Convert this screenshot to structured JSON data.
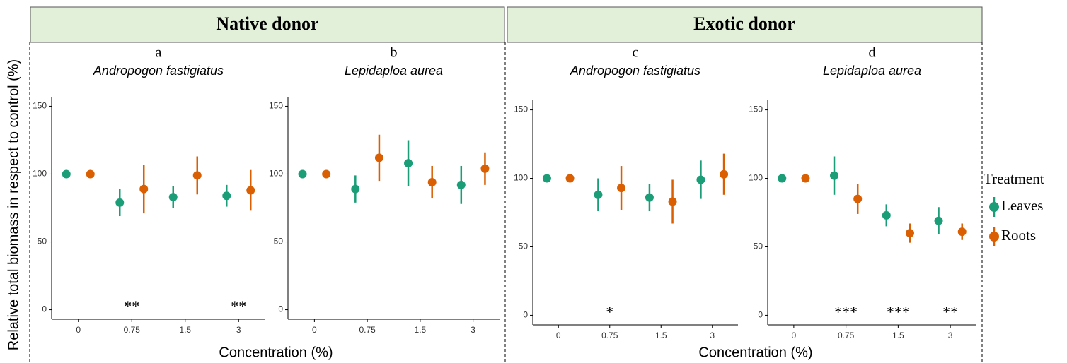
{
  "groups": [
    {
      "title": "Native donor",
      "x_label": "Concentration (%)"
    },
    {
      "title": "Exotic donor",
      "x_label": "Concentration (%)"
    }
  ],
  "y_label": "Relative total biomass in respect to control (%)",
  "legend_title": "Treatment",
  "chart_data": [
    {
      "type": "pointrange",
      "label": "a",
      "title": "Andropogon fastigiatus",
      "categories": [
        "0",
        "0.75",
        "1.5",
        "3"
      ],
      "series": [
        {
          "name": "Leaves",
          "color": "#1b9e77",
          "values": [
            100,
            79,
            83,
            84
          ],
          "errors": [
            0,
            10,
            8,
            8
          ]
        },
        {
          "name": "Roots",
          "color": "#d95f02",
          "values": [
            100,
            89,
            99,
            88
          ],
          "errors": [
            0,
            18,
            14,
            15
          ]
        }
      ],
      "annotations": [
        null,
        "**",
        null,
        "**"
      ],
      "ylim": [
        -7,
        157
      ],
      "yticks": [
        0,
        50,
        100,
        150
      ]
    },
    {
      "type": "pointrange",
      "label": "b",
      "title": "Lepidaploa aurea",
      "categories": [
        "0",
        "0.75",
        "1.5",
        "3"
      ],
      "series": [
        {
          "name": "Leaves",
          "color": "#1b9e77",
          "values": [
            100,
            89,
            108,
            92
          ],
          "errors": [
            0,
            10,
            17,
            14
          ]
        },
        {
          "name": "Roots",
          "color": "#d95f02",
          "values": [
            100,
            112,
            94,
            104
          ],
          "errors": [
            0,
            17,
            12,
            12
          ]
        }
      ],
      "annotations": [
        null,
        null,
        null,
        null
      ],
      "ylim": [
        -7,
        157
      ],
      "yticks": [
        0,
        50,
        100,
        150
      ]
    },
    {
      "type": "pointrange",
      "label": "c",
      "title": "Andropogon fastigiatus",
      "categories": [
        "0",
        "0.75",
        "1.5",
        "3"
      ],
      "series": [
        {
          "name": "Leaves",
          "color": "#1b9e77",
          "values": [
            100,
            88,
            86,
            99
          ],
          "errors": [
            0,
            12,
            10,
            14
          ]
        },
        {
          "name": "Roots",
          "color": "#d95f02",
          "values": [
            100,
            93,
            83,
            103
          ],
          "errors": [
            0,
            16,
            16,
            15
          ]
        }
      ],
      "annotations": [
        null,
        "*",
        null,
        null
      ],
      "ylim": [
        -7,
        157
      ],
      "yticks": [
        0,
        50,
        100,
        150
      ]
    },
    {
      "type": "pointrange",
      "label": "d",
      "title": "Lepidaploa aurea",
      "categories": [
        "0",
        "0.75",
        "1.5",
        "3"
      ],
      "series": [
        {
          "name": "Leaves",
          "color": "#1b9e77",
          "values": [
            100,
            102,
            73,
            69
          ],
          "errors": [
            0,
            14,
            8,
            10
          ]
        },
        {
          "name": "Roots",
          "color": "#d95f02",
          "values": [
            100,
            85,
            60,
            61
          ],
          "errors": [
            0,
            11,
            7,
            6
          ]
        }
      ],
      "annotations": [
        null,
        "***",
        "***",
        "**"
      ],
      "ylim": [
        -7,
        157
      ],
      "yticks": [
        0,
        50,
        100,
        150
      ]
    }
  ]
}
